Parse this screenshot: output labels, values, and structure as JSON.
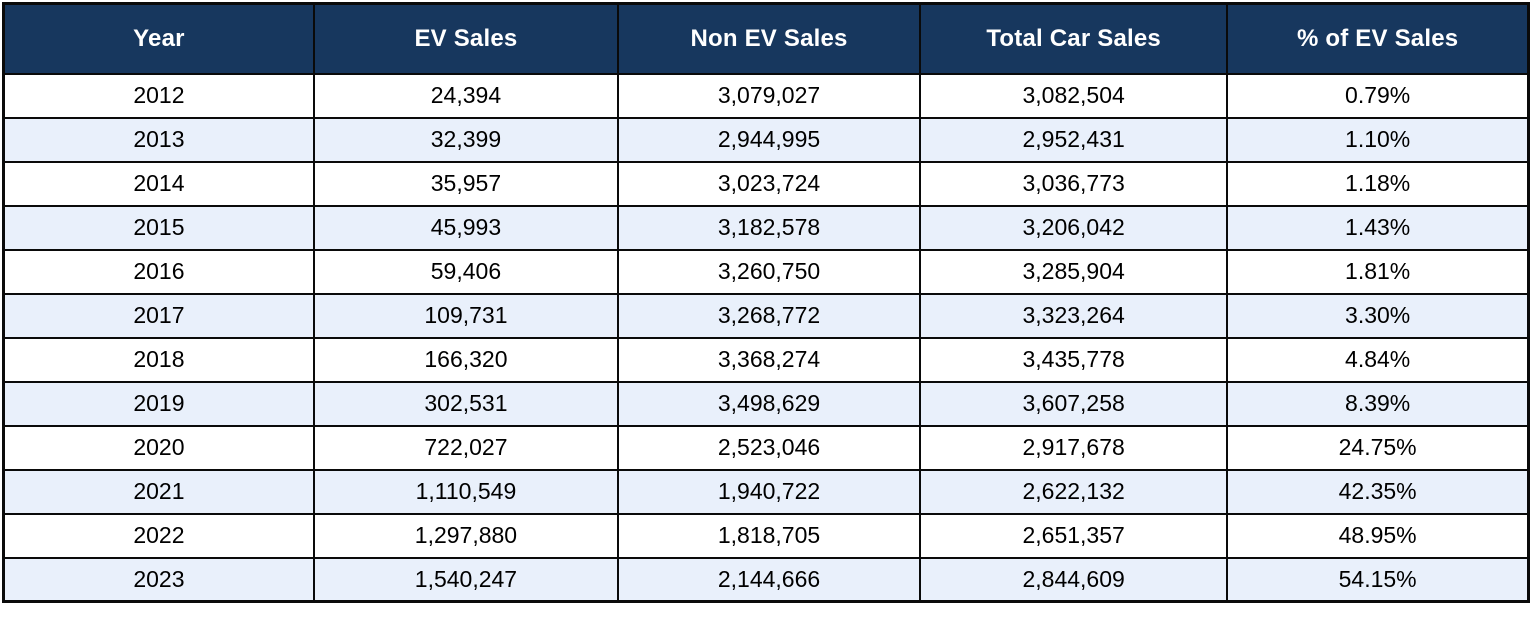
{
  "chart_data": {
    "type": "table",
    "columns": [
      "Year",
      "EV Sales",
      "Non EV Sales",
      "Total Car Sales",
      "% of EV Sales"
    ],
    "rows": [
      [
        "2012",
        "24,394",
        "3,079,027",
        "3,082,504",
        "0.79%"
      ],
      [
        "2013",
        "32,399",
        "2,944,995",
        "2,952,431",
        "1.10%"
      ],
      [
        "2014",
        "35,957",
        "3,023,724",
        "3,036,773",
        "1.18%"
      ],
      [
        "2015",
        "45,993",
        "3,182,578",
        "3,206,042",
        "1.43%"
      ],
      [
        "2016",
        "59,406",
        "3,260,750",
        "3,285,904",
        "1.81%"
      ],
      [
        "2017",
        "109,731",
        "3,268,772",
        "3,323,264",
        "3.30%"
      ],
      [
        "2018",
        "166,320",
        "3,368,274",
        "3,435,778",
        "4.84%"
      ],
      [
        "2019",
        "302,531",
        "3,498,629",
        "3,607,258",
        "8.39%"
      ],
      [
        "2020",
        "722,027",
        "2,523,046",
        "2,917,678",
        "24.75%"
      ],
      [
        "2021",
        "1,110,549",
        "1,940,722",
        "2,622,132",
        "42.35%"
      ],
      [
        "2022",
        "1,297,880",
        "1,818,705",
        "2,651,357",
        "48.95%"
      ],
      [
        "2023",
        "1,540,247",
        "2,144,666",
        "2,844,609",
        "54.15%"
      ]
    ],
    "layout": {
      "header_position": "top",
      "zebra_striping": true,
      "first_data_row_bg": "white",
      "grid": "on"
    }
  },
  "colors": {
    "header_bg": "#17375E",
    "header_text": "#FFFFFF",
    "row_odd_bg": "#FFFFFF",
    "row_even_bg": "#E9F0FB",
    "border": "#0A0A0A",
    "body_text": "#000000",
    "page_bg": "#FFFFFF"
  }
}
